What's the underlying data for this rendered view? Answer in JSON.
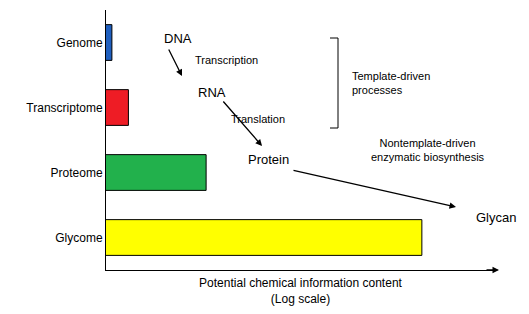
{
  "chart_data": {
    "type": "bar",
    "orientation": "horizontal",
    "log": "x",
    "grid": false,
    "tick_labels": "y",
    "x_label": [
      "Potential chemical information content",
      "(Log scale)"
    ],
    "categories": [
      "Genome",
      "Transcriptome",
      "Proteome",
      "Glycome"
    ],
    "values": [
      1.15,
      1.7,
      10.7,
      1770
    ],
    "colors": [
      "#1f5fbf",
      "#ee1c25",
      "#22b14c",
      "#ffff00"
    ],
    "xlim": [
      1,
      10000
    ],
    "annotations": [
      {
        "text": [
          "DNA"
        ]
      },
      {
        "text": [
          "Transcription"
        ]
      },
      {
        "text": [
          "RNA"
        ]
      },
      {
        "text": [
          "Translation"
        ]
      },
      {
        "text": [
          "Protein"
        ]
      },
      {
        "text": [
          "Template-driven",
          "processes"
        ]
      },
      {
        "text": [
          "Nontemplate-driven",
          "enzymatic biosynthesis"
        ]
      },
      {
        "text": [
          "Glycan"
        ]
      }
    ]
  }
}
